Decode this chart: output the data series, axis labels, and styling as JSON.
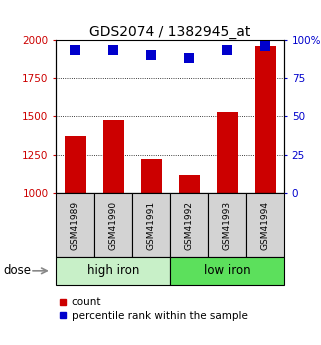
{
  "title": "GDS2074 / 1382945_at",
  "samples": [
    "GSM41989",
    "GSM41990",
    "GSM41991",
    "GSM41992",
    "GSM41993",
    "GSM41994"
  ],
  "counts": [
    1370,
    1480,
    1220,
    1120,
    1530,
    1960
  ],
  "percentile_ranks": [
    93,
    93,
    90,
    88,
    93,
    96
  ],
  "ylim_left": [
    1000,
    2000
  ],
  "ylim_right": [
    0,
    100
  ],
  "yticks_left": [
    1000,
    1250,
    1500,
    1750,
    2000
  ],
  "ytick_labels_left": [
    "1000",
    "1250",
    "1500",
    "1750",
    "2000"
  ],
  "yticks_right": [
    0,
    25,
    50,
    75,
    100
  ],
  "ytick_labels_right": [
    "0",
    "25",
    "50",
    "75",
    "100%"
  ],
  "groups": [
    {
      "label": "high iron",
      "indices": [
        0,
        1,
        2
      ],
      "color": "#c8f0c8"
    },
    {
      "label": "low iron",
      "indices": [
        3,
        4,
        5
      ],
      "color": "#5ce05c"
    }
  ],
  "bar_color": "#cc0000",
  "dot_color": "#0000cc",
  "bar_width": 0.55,
  "dot_size": 45,
  "grid_yticks": [
    1250,
    1500,
    1750
  ],
  "dose_label": "dose",
  "legend_count_label": "count",
  "legend_pct_label": "percentile rank within the sample",
  "title_fontsize": 10,
  "tick_fontsize": 7.5,
  "label_fontsize": 8.5,
  "legend_fontsize": 7.5,
  "sample_fontsize": 6.5,
  "group_fontsize": 8.5
}
